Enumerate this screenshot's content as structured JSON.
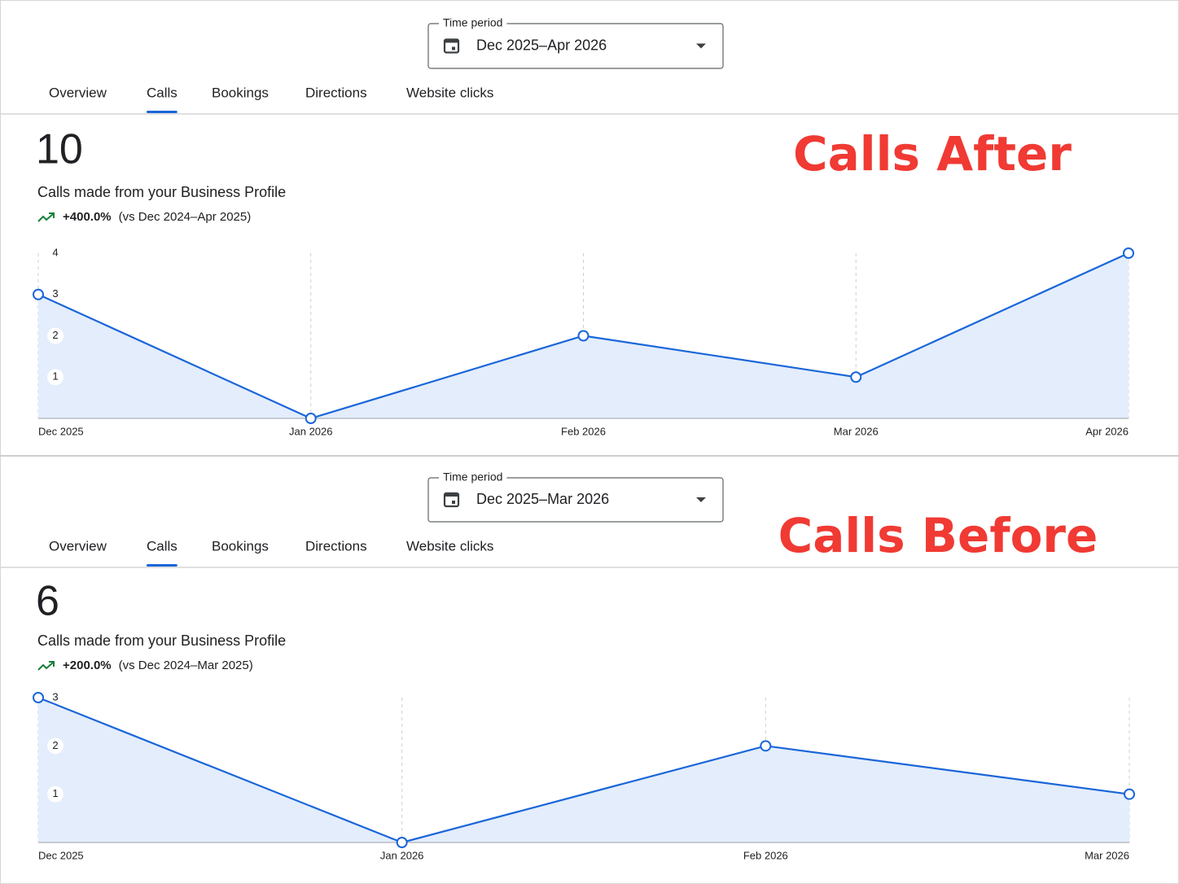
{
  "panels": [
    {
      "annotation": "Calls After",
      "time_period_label": "Time period",
      "time_period": "Dec 2025–Apr 2026",
      "tabs": [
        "Overview",
        "Calls",
        "Bookings",
        "Directions",
        "Website clicks"
      ],
      "active_tab": 1,
      "total": 10,
      "metric_label": "Calls made from your Business Profile",
      "change": "+400.0%",
      "comparison": "(vs Dec 2024–Apr 2025)",
      "chart": {
        "type": "line",
        "x": [
          "Dec 2025",
          "Jan 2026",
          "Feb 2026",
          "Mar 2026",
          "Apr 2026"
        ],
        "values": [
          3,
          0,
          2,
          1,
          4
        ],
        "ylim": [
          0,
          4
        ],
        "yticks": [
          1,
          2,
          3,
          4
        ],
        "color": "#1a66d9"
      }
    },
    {
      "annotation": "Calls Before",
      "time_period_label": "Time period",
      "time_period": "Dec 2025–Mar 2026",
      "tabs": [
        "Overview",
        "Calls",
        "Bookings",
        "Directions",
        "Website clicks"
      ],
      "active_tab": 1,
      "total": 6,
      "metric_label": "Calls made from your Business Profile",
      "change": "+200.0%",
      "comparison": "(vs Dec 2024–Mar 2025)",
      "chart": {
        "type": "line",
        "x": [
          "Dec 2025",
          "Jan 2026",
          "Feb 2026",
          "Mar 2026"
        ],
        "values": [
          3,
          0,
          2,
          1
        ],
        "ylim": [
          0,
          3
        ],
        "yticks": [
          1,
          2,
          3
        ],
        "color": "#1a66d9"
      }
    }
  ]
}
